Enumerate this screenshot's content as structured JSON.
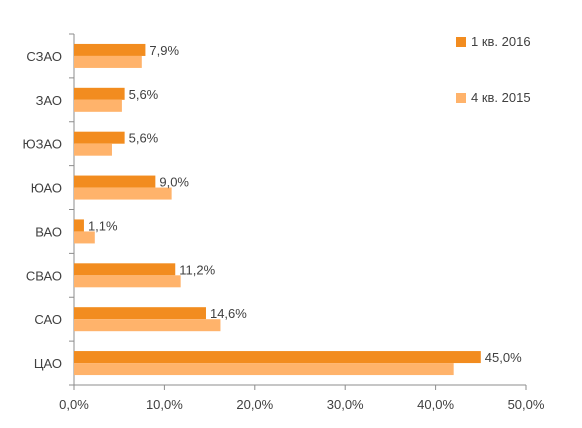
{
  "chart_data": {
    "type": "bar",
    "orientation": "horizontal",
    "categories": [
      "СЗАО",
      "ЗАО",
      "ЮЗАО",
      "ЮАО",
      "ВАО",
      "СВАО",
      "САО",
      "ЦАО"
    ],
    "series": [
      {
        "name": "1 кв. 2016",
        "color": "#F28C1F",
        "values": [
          7.9,
          5.6,
          5.6,
          9.0,
          1.1,
          11.2,
          14.6,
          45.0
        ],
        "labels": [
          "7,9%",
          "5,6%",
          "5,6%",
          "9,0%",
          "1,1%",
          "11,2%",
          "14,6%",
          "45,0%"
        ]
      },
      {
        "name": "4 кв. 2015",
        "color": "#FFB36B",
        "values": [
          7.5,
          5.3,
          4.2,
          10.8,
          2.3,
          11.8,
          16.2,
          42.0
        ]
      }
    ],
    "x_ticks": [
      "0,0%",
      "10,0%",
      "20,0%",
      "30,0%",
      "40,0%",
      "50,0%"
    ],
    "xlim": [
      0,
      50
    ],
    "xlabel": "",
    "ylabel": "",
    "title": "",
    "grid": false,
    "legend_position": "right"
  }
}
